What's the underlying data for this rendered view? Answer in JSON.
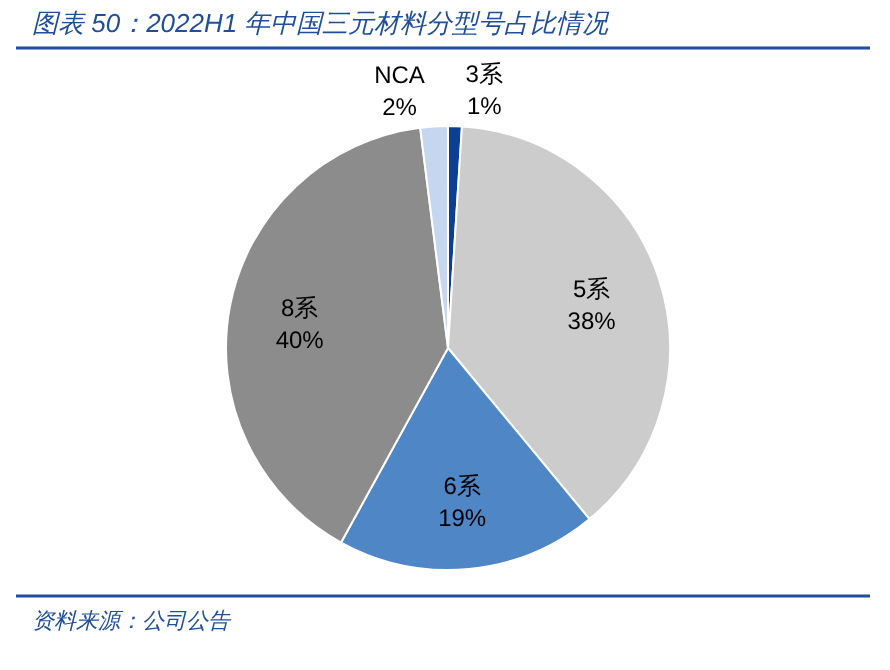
{
  "chart_data": {
    "type": "pie",
    "title": "图表 50：2022H1 年中国三元材料分型号占比情况",
    "categories": [
      "3系",
      "5系",
      "6系",
      "8系",
      "NCA"
    ],
    "values": [
      1,
      38,
      19,
      40,
      2
    ],
    "colors": [
      "#0b3f94",
      "#cccccc",
      "#4f86c6",
      "#8c8c8c",
      "#c5d7ee"
    ],
    "value_labels": [
      "1%",
      "38%",
      "19%",
      "40%",
      "2%"
    ],
    "annotations": [
      "资料来源：公司公告"
    ]
  }
}
